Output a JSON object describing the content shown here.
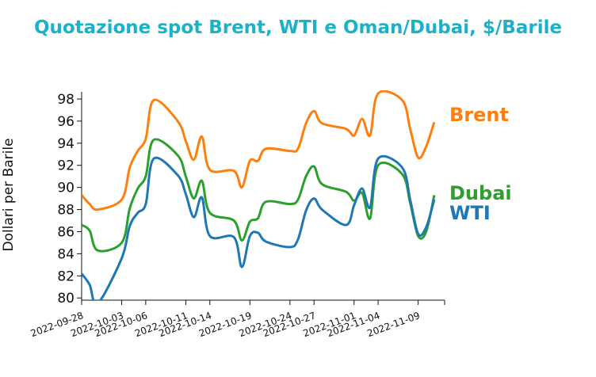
{
  "chart_data": {
    "type": "line",
    "title": "Quotazione spot Brent, WTI e Oman/Dubai, $/Barile",
    "ylabel": "Dollari per Barile",
    "xlabel": "",
    "ylim": [
      79.8,
      98.5
    ],
    "xlim": [
      "2022-09-28",
      "2022-11-11"
    ],
    "x_ticks": [
      "2022-09-28",
      "2022-10-03",
      "2022-10-06",
      "2022-10-11",
      "2022-10-14",
      "2022-10-19",
      "2022-10-24",
      "2022-10-27",
      "2022-11-01",
      "2022-11-04",
      "2022-11-09"
    ],
    "y_ticks": [
      80,
      82,
      84,
      86,
      88,
      90,
      92,
      94,
      96,
      98
    ],
    "colors": {
      "title": "#1ab2c7",
      "Brent": "#ff7f0e",
      "Dubai": "#2ca02c",
      "WTI": "#1f77b4"
    },
    "series": [
      {
        "name": "Brent",
        "points": [
          [
            "2022-09-28",
            89.3
          ],
          [
            "2022-09-29",
            88.5
          ],
          [
            "2022-09-30",
            88.0
          ],
          [
            "2022-10-03",
            88.9
          ],
          [
            "2022-10-04",
            91.8
          ],
          [
            "2022-10-05",
            93.3
          ],
          [
            "2022-10-06",
            94.4
          ],
          [
            "2022-10-07",
            97.9
          ],
          [
            "2022-10-10",
            96.0
          ],
          [
            "2022-10-11",
            94.2
          ],
          [
            "2022-10-12",
            92.5
          ],
          [
            "2022-10-13",
            94.6
          ],
          [
            "2022-10-14",
            91.6
          ],
          [
            "2022-10-17",
            91.5
          ],
          [
            "2022-10-18",
            90.0
          ],
          [
            "2022-10-19",
            92.4
          ],
          [
            "2022-10-20",
            92.4
          ],
          [
            "2022-10-21",
            93.5
          ],
          [
            "2022-10-24",
            93.3
          ],
          [
            "2022-10-25",
            93.5
          ],
          [
            "2022-10-26",
            95.8
          ],
          [
            "2022-10-27",
            96.9
          ],
          [
            "2022-10-28",
            95.8
          ],
          [
            "2022-10-31",
            95.3
          ],
          [
            "2022-11-01",
            94.7
          ],
          [
            "2022-11-02",
            96.2
          ],
          [
            "2022-11-03",
            94.7
          ],
          [
            "2022-11-04",
            98.5
          ],
          [
            "2022-11-07",
            97.9
          ],
          [
            "2022-11-08",
            95.3
          ],
          [
            "2022-11-09",
            92.7
          ],
          [
            "2022-11-10",
            93.7
          ],
          [
            "2022-11-11",
            95.9
          ]
        ]
      },
      {
        "name": "Dubai",
        "points": [
          [
            "2022-09-28",
            86.6
          ],
          [
            "2022-09-29",
            86.1
          ],
          [
            "2022-09-30",
            84.3
          ],
          [
            "2022-10-03",
            85.0
          ],
          [
            "2022-10-04",
            88.1
          ],
          [
            "2022-10-05",
            89.9
          ],
          [
            "2022-10-06",
            91.0
          ],
          [
            "2022-10-07",
            94.3
          ],
          [
            "2022-10-10",
            92.9
          ],
          [
            "2022-10-11",
            91.0
          ],
          [
            "2022-10-12",
            89.0
          ],
          [
            "2022-10-13",
            90.6
          ],
          [
            "2022-10-14",
            87.7
          ],
          [
            "2022-10-17",
            87.0
          ],
          [
            "2022-10-18",
            85.2
          ],
          [
            "2022-10-19",
            86.9
          ],
          [
            "2022-10-20",
            87.2
          ],
          [
            "2022-10-21",
            88.7
          ],
          [
            "2022-10-24",
            88.5
          ],
          [
            "2022-10-25",
            88.9
          ],
          [
            "2022-10-26",
            91.0
          ],
          [
            "2022-10-27",
            91.9
          ],
          [
            "2022-10-28",
            90.3
          ],
          [
            "2022-10-31",
            89.6
          ],
          [
            "2022-11-01",
            88.8
          ],
          [
            "2022-11-02",
            89.5
          ],
          [
            "2022-11-03",
            87.2
          ],
          [
            "2022-11-04",
            92.0
          ],
          [
            "2022-11-07",
            91.2
          ],
          [
            "2022-11-08",
            88.6
          ],
          [
            "2022-11-09",
            85.6
          ],
          [
            "2022-11-10",
            86.0
          ],
          [
            "2022-11-11",
            89.3
          ]
        ]
      },
      {
        "name": "WTI",
        "points": [
          [
            "2022-09-28",
            82.2
          ],
          [
            "2022-09-29",
            81.2
          ],
          [
            "2022-09-30",
            79.5
          ],
          [
            "2022-10-03",
            83.6
          ],
          [
            "2022-10-04",
            86.5
          ],
          [
            "2022-10-05",
            87.7
          ],
          [
            "2022-10-06",
            88.5
          ],
          [
            "2022-10-07",
            92.6
          ],
          [
            "2022-10-10",
            91.1
          ],
          [
            "2022-10-11",
            89.4
          ],
          [
            "2022-10-12",
            87.3
          ],
          [
            "2022-10-13",
            89.1
          ],
          [
            "2022-10-14",
            85.6
          ],
          [
            "2022-10-17",
            85.5
          ],
          [
            "2022-10-18",
            82.8
          ],
          [
            "2022-10-19",
            85.6
          ],
          [
            "2022-10-20",
            85.9
          ],
          [
            "2022-10-21",
            85.1
          ],
          [
            "2022-10-24",
            84.6
          ],
          [
            "2022-10-25",
            85.3
          ],
          [
            "2022-10-26",
            87.9
          ],
          [
            "2022-10-27",
            89.0
          ],
          [
            "2022-10-28",
            88.0
          ],
          [
            "2022-10-31",
            86.6
          ],
          [
            "2022-11-01",
            88.4
          ],
          [
            "2022-11-02",
            89.9
          ],
          [
            "2022-11-03",
            88.2
          ],
          [
            "2022-11-04",
            92.6
          ],
          [
            "2022-11-07",
            91.8
          ],
          [
            "2022-11-08",
            88.9
          ],
          [
            "2022-11-09",
            85.8
          ],
          [
            "2022-11-10",
            86.4
          ],
          [
            "2022-11-11",
            88.9
          ]
        ]
      }
    ],
    "legend_placement": "right, inline at line ends",
    "grid": false
  }
}
